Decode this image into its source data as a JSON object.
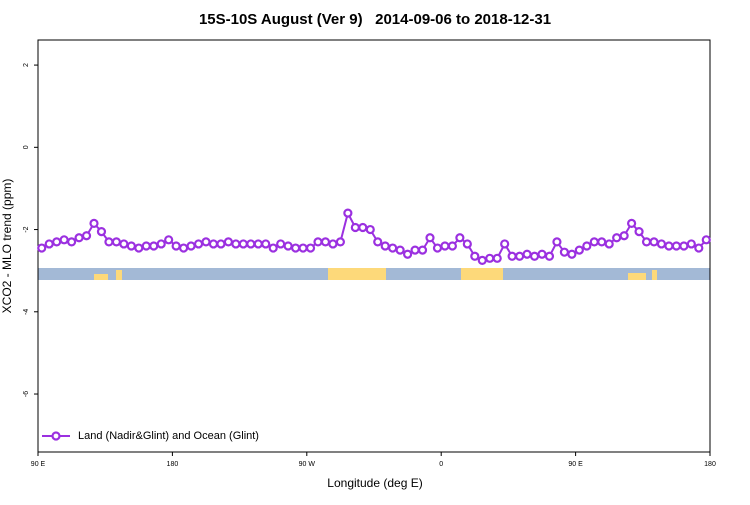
{
  "chart_data": {
    "type": "line",
    "title": "15S-10S August (Ver 9)   2014-09-06 to 2018-12-31",
    "x_label": "Longitude (deg E)",
    "y_label": "XCO2 - MLO trend (ppm)",
    "x": [
      92.5,
      97.5,
      102.5,
      107.5,
      112.5,
      117.5,
      122.5,
      127.5,
      132.5,
      137.5,
      142.5,
      147.5,
      152.5,
      157.5,
      162.5,
      167.5,
      172.5,
      177.5,
      182.5,
      187.5,
      192.5,
      197.5,
      202.5,
      207.5,
      212.5,
      217.5,
      222.5,
      227.5,
      232.5,
      237.5,
      242.5,
      247.5,
      252.5,
      257.5,
      262.5,
      267.5,
      272.5,
      277.5,
      282.5,
      287.5,
      292.5,
      297.5,
      302.5,
      307.5,
      312.5,
      317.5,
      322.5,
      327.5,
      332.5,
      337.5,
      342.5,
      347.5,
      352.5,
      357.5,
      362.5,
      367.5,
      372.5,
      377.5,
      382.5,
      387.5,
      392.5,
      397.5,
      402.5,
      407.5,
      412.5,
      417.5,
      422.5,
      427.5,
      432.5,
      437.5,
      442.5,
      447.5,
      452.5,
      457.5,
      462.5,
      467.5,
      472.5,
      477.5,
      482.5,
      487.5,
      492.5,
      497.5,
      502.5,
      507.5,
      512.5,
      517.5,
      522.5,
      527.5,
      532.5,
      537.5
    ],
    "series": [
      {
        "name": "Land (Nadir&Glint) and Ocean (Glint)",
        "color": "#9b30e0",
        "values": [
          -2.45,
          -2.35,
          -2.3,
          -2.25,
          -2.3,
          -2.2,
          -2.15,
          -1.85,
          -2.05,
          -2.3,
          -2.3,
          -2.35,
          -2.4,
          -2.45,
          -2.4,
          -2.4,
          -2.35,
          -2.25,
          -2.4,
          -2.45,
          -2.4,
          -2.35,
          -2.3,
          -2.35,
          -2.35,
          -2.3,
          -2.35,
          -2.35,
          -2.35,
          -2.35,
          -2.35,
          -2.45,
          -2.35,
          -2.4,
          -2.45,
          -2.45,
          -2.45,
          -2.3,
          -2.3,
          -2.35,
          -2.3,
          -1.6,
          -1.95,
          -1.95,
          -2.0,
          -2.3,
          -2.4,
          -2.45,
          -2.5,
          -2.6,
          -2.5,
          -2.5,
          -2.2,
          -2.45,
          -2.4,
          -2.4,
          -2.2,
          -2.35,
          -2.65,
          -2.75,
          -2.7,
          -2.7,
          -2.35,
          -2.65,
          -2.65,
          -2.6,
          -2.65,
          -2.6,
          -2.65,
          -2.3,
          -2.55,
          -2.6,
          -2.5,
          -2.4,
          -2.3,
          -2.3,
          -2.35,
          -2.2,
          -2.15,
          -1.85,
          -2.05,
          -2.3,
          -2.3,
          -2.35,
          -2.4,
          -2.4,
          -2.4,
          -2.35,
          -2.45,
          -2.25
        ]
      }
    ],
    "xlim": [
      90,
      540
    ],
    "xticks": [
      {
        "value": 90,
        "label": "90 E"
      },
      180,
      {
        "value": 270,
        "label": "90 W"
      },
      {
        "value": 360,
        "label": "0"
      },
      {
        "value": 450,
        "label": "90 E"
      },
      {
        "value": 540,
        "label": "180"
      }
    ],
    "ylim": [
      -7.41,
      2.61
    ],
    "yticks": [
      -6,
      -4,
      -2,
      0,
      2
    ],
    "legend": "bottom-left"
  }
}
